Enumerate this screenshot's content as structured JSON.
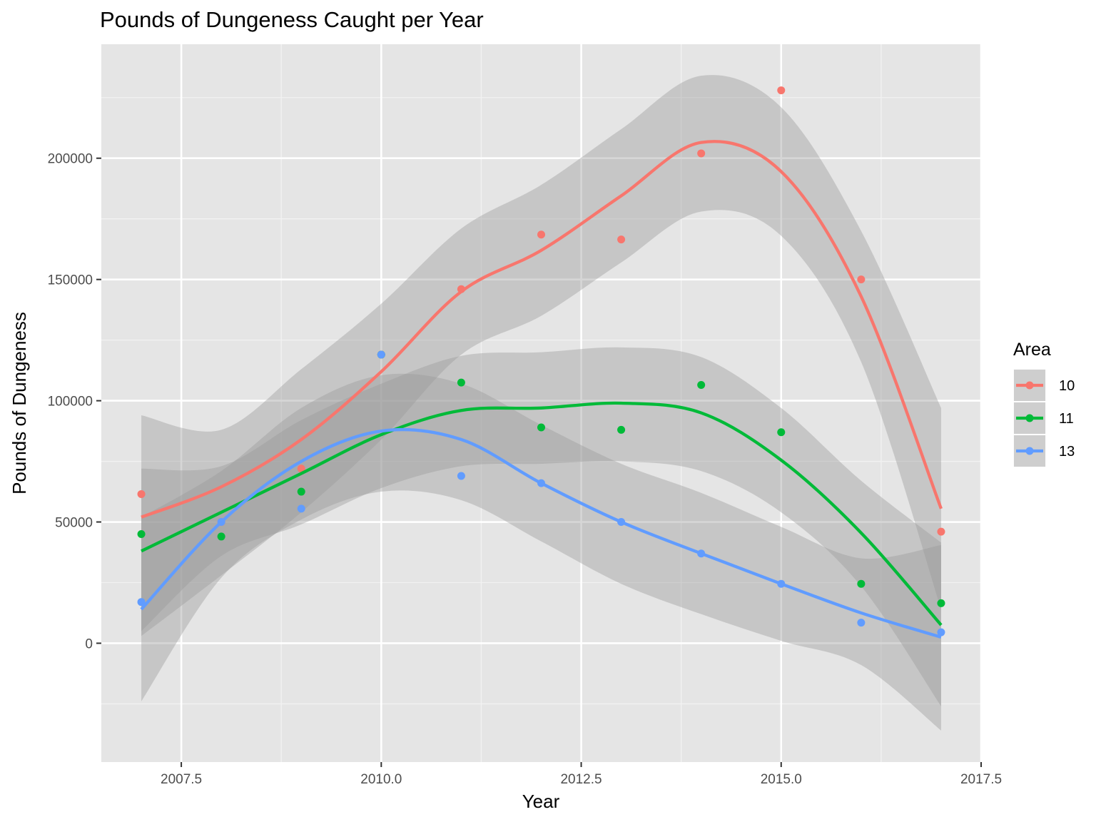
{
  "chart_data": {
    "type": "scatter",
    "title": "Pounds of Dungeness Caught per Year",
    "xlabel": "Year",
    "ylabel": "Pounds of Dungeness",
    "xlim": [
      2006.5,
      2017.5
    ],
    "ylim": [
      -49000,
      247000
    ],
    "x_ticks": [
      2007.5,
      2010.0,
      2012.5,
      2015.0,
      2017.5
    ],
    "x_tick_labels": [
      "2007.5",
      "2010.0",
      "2012.5",
      "2015.0",
      "2017.5"
    ],
    "y_ticks": [
      0,
      50000,
      100000,
      150000,
      200000
    ],
    "y_tick_labels": [
      "0",
      "50000",
      "100000",
      "150000",
      "200000"
    ],
    "grid": true,
    "legend": {
      "title": "Area",
      "position": "right"
    },
    "series": [
      {
        "name": "10",
        "color": "#F8766D",
        "x": [
          2007,
          2008,
          2009,
          2010,
          2011,
          2012,
          2013,
          2014,
          2015,
          2016,
          2017
        ],
        "points": [
          61500,
          50000,
          72000,
          119000,
          146000,
          168500,
          166500,
          202000,
          228000,
          150000,
          46000
        ],
        "smooth": [
          52000,
          64500,
          84000,
          112000,
          145000,
          162000,
          184500,
          206500,
          194500,
          143000,
          55500
        ],
        "ci_upper": [
          94000,
          88000,
          113000,
          140000,
          171000,
          189000,
          212000,
          234000,
          221000,
          170000,
          97000
        ],
        "ci_lower": [
          3000,
          28000,
          54000,
          84000,
          119000,
          135000,
          157000,
          178000,
          168000,
          116000,
          14000
        ]
      },
      {
        "name": "11",
        "color": "#00BA38",
        "x": [
          2007,
          2008,
          2009,
          2010,
          2011,
          2012,
          2013,
          2014,
          2015,
          2016,
          2017
        ],
        "points": [
          45000,
          44000,
          62500,
          119000,
          107500,
          89000,
          88000,
          106500,
          87000,
          24500,
          16500
        ],
        "smooth": [
          38000,
          54000,
          70000,
          86000,
          96000,
          97000,
          99000,
          95000,
          75500,
          45500,
          7500
        ],
        "ci_upper": [
          72000,
          73000,
          92000,
          107000,
          118500,
          120000,
          122000,
          118000,
          97000,
          67000,
          41500
        ],
        "ci_lower": [
          5000,
          36000,
          49000,
          64000,
          73000,
          74000,
          75000,
          71000,
          54000,
          23500,
          -26000
        ]
      },
      {
        "name": "13",
        "color": "#619CFF",
        "x": [
          2007,
          2008,
          2009,
          2010,
          2011,
          2012,
          2013,
          2014,
          2015,
          2016,
          2017
        ],
        "points": [
          17000,
          50000,
          55500,
          119000,
          69000,
          66000,
          50000,
          37000,
          24500,
          8500,
          4500
        ],
        "smooth": [
          14000,
          50000,
          75000,
          87500,
          84000,
          66000,
          50000,
          37000,
          24500,
          12500,
          2500
        ],
        "ci_upper": [
          52000,
          71000,
          97000,
          110500,
          107000,
          90000,
          74000,
          62000,
          48000,
          35000,
          40500
        ],
        "ci_lower": [
          -24000,
          27000,
          51000,
          62500,
          59000,
          42000,
          24500,
          12000,
          1000,
          -9000,
          -36000
        ]
      }
    ]
  }
}
